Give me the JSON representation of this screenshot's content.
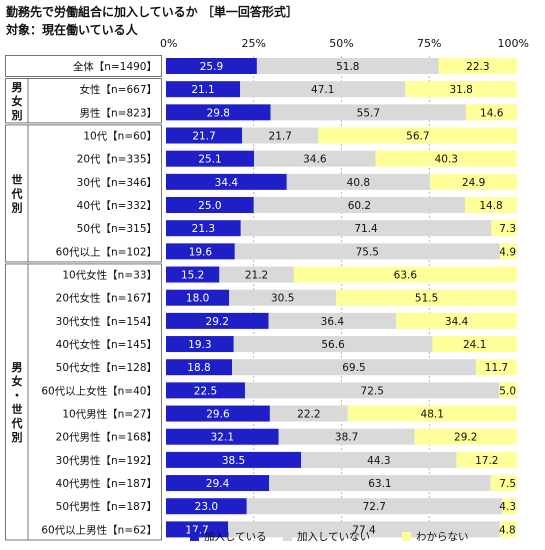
{
  "chart_data": {
    "type": "bar",
    "stacked": true,
    "orientation": "horizontal",
    "title": "勤務先で労働組合に加入しているか ［単一回答形式］",
    "subtitle": "対象：現在働いている人",
    "x_ticks": [
      "0%",
      "25%",
      "50%",
      "75%",
      "100%"
    ],
    "xlim": [
      0,
      100
    ],
    "legend_position": "bottom",
    "series": [
      {
        "name": "加入している",
        "color": "#1f1fc8"
      },
      {
        "name": "加入していない",
        "color": "#d9d9d9"
      },
      {
        "name": "わからない",
        "color": "#ffff99"
      }
    ],
    "groups": [
      {
        "label": "",
        "rows": [
          0,
          0
        ]
      },
      {
        "label": "男女別",
        "rows": [
          1,
          2
        ]
      },
      {
        "label": "世代別",
        "rows": [
          3,
          8
        ]
      },
      {
        "label": "男女・世代別",
        "rows": [
          9,
          20
        ]
      }
    ],
    "rows": [
      {
        "label": "全体【n=1490】",
        "values": [
          25.9,
          51.8,
          22.3
        ]
      },
      {
        "label": "女性【n=667】",
        "values": [
          21.1,
          47.1,
          31.8
        ]
      },
      {
        "label": "男性【n=823】",
        "values": [
          29.8,
          55.7,
          14.6
        ]
      },
      {
        "label": "10代【n=60】",
        "values": [
          21.7,
          21.7,
          56.7
        ]
      },
      {
        "label": "20代【n=335】",
        "values": [
          25.1,
          34.6,
          40.3
        ]
      },
      {
        "label": "30代【n=346】",
        "values": [
          34.4,
          40.8,
          24.9
        ]
      },
      {
        "label": "40代【n=332】",
        "values": [
          25.0,
          60.2,
          14.8
        ]
      },
      {
        "label": "50代【n=315】",
        "values": [
          21.3,
          71.4,
          7.3
        ]
      },
      {
        "label": "60代以上【n=102】",
        "values": [
          19.6,
          75.5,
          4.9
        ]
      },
      {
        "label": "10代女性【n=33】",
        "values": [
          15.2,
          21.2,
          63.6
        ]
      },
      {
        "label": "20代女性【n=167】",
        "values": [
          18.0,
          30.5,
          51.5
        ]
      },
      {
        "label": "30代女性【n=154】",
        "values": [
          29.2,
          36.4,
          34.4
        ]
      },
      {
        "label": "40代女性【n=145】",
        "values": [
          19.3,
          56.6,
          24.1
        ]
      },
      {
        "label": "50代女性【n=128】",
        "values": [
          18.8,
          69.5,
          11.7
        ]
      },
      {
        "label": "60代以上女性【n=40】",
        "values": [
          22.5,
          72.5,
          5.0
        ]
      },
      {
        "label": "10代男性【n=27】",
        "values": [
          29.6,
          22.2,
          48.1
        ]
      },
      {
        "label": "20代男性【n=168】",
        "values": [
          32.1,
          38.7,
          29.2
        ]
      },
      {
        "label": "30代男性【n=192】",
        "values": [
          38.5,
          44.3,
          17.2
        ]
      },
      {
        "label": "40代男性【n=187】",
        "values": [
          29.4,
          63.1,
          7.5
        ]
      },
      {
        "label": "50代男性【n=187】",
        "values": [
          23.0,
          72.7,
          4.3
        ]
      },
      {
        "label": "60代以上男性【n=62】",
        "values": [
          17.7,
          77.4,
          4.8
        ]
      }
    ]
  }
}
